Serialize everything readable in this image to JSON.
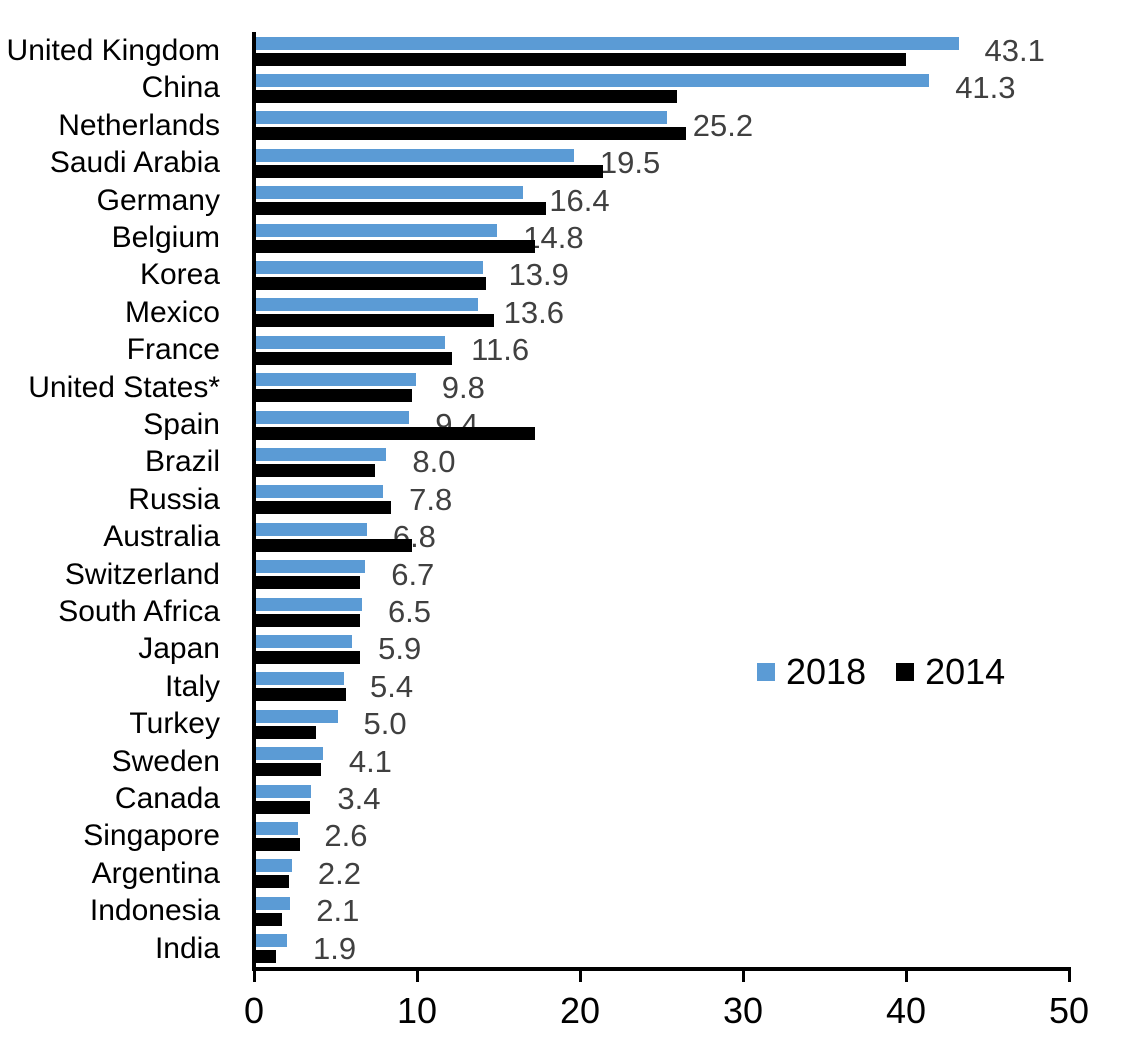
{
  "chart_data": {
    "type": "bar",
    "orientation": "horizontal",
    "title": "",
    "xlabel": "",
    "ylabel": "",
    "xlim": [
      0,
      50
    ],
    "x_ticks": [
      0,
      10,
      20,
      30,
      40,
      50
    ],
    "grid": false,
    "legend_position": "center-right",
    "categories": [
      "United Kingdom",
      "China",
      "Netherlands",
      "Saudi Arabia",
      "Germany",
      "Belgium",
      "Korea",
      "Mexico",
      "France",
      "United States*",
      "Spain",
      "Brazil",
      "Russia",
      "Australia",
      "Switzerland",
      "South Africa",
      "Japan",
      "Italy",
      "Turkey",
      "Sweden",
      "Canada",
      "Singapore",
      "Argentina",
      "Indonesia",
      "India"
    ],
    "series": [
      {
        "name": "2018",
        "color": "#5B9BD5",
        "values": [
          43.1,
          41.3,
          25.2,
          19.5,
          16.4,
          14.8,
          13.9,
          13.6,
          11.6,
          9.8,
          9.4,
          8.0,
          7.8,
          6.8,
          6.7,
          6.5,
          5.9,
          5.4,
          5.0,
          4.1,
          3.4,
          2.6,
          2.2,
          2.1,
          1.9
        ]
      },
      {
        "name": "2014",
        "color": "#000000",
        "values": [
          39.9,
          25.8,
          26.4,
          21.3,
          17.8,
          17.1,
          14.1,
          14.6,
          12.0,
          9.6,
          17.1,
          7.3,
          8.3,
          9.6,
          6.4,
          6.4,
          6.4,
          5.5,
          3.7,
          4.0,
          3.3,
          2.7,
          2.0,
          1.6,
          1.2
        ]
      }
    ],
    "data_labels": {
      "series": "2018",
      "color": "#404040",
      "texts": [
        "43.1",
        "41.3",
        "25.2",
        "19.5",
        "16.4",
        "14.8",
        "13.9",
        "13.6",
        "11.6",
        "9.8",
        "9.4",
        "8.0",
        "7.8",
        "6.8",
        "6.7",
        "6.5",
        "5.9",
        "5.4",
        "5.0",
        "4.1",
        "3.4",
        "2.6",
        "2.2",
        "2.1",
        "1.9"
      ]
    }
  },
  "colors": {
    "axis": "#000000",
    "category_label": "#000000",
    "tick_label": "#000000",
    "value_label": "#404040",
    "bar_2018": "#5B9BD5",
    "bar_2014": "#000000"
  }
}
